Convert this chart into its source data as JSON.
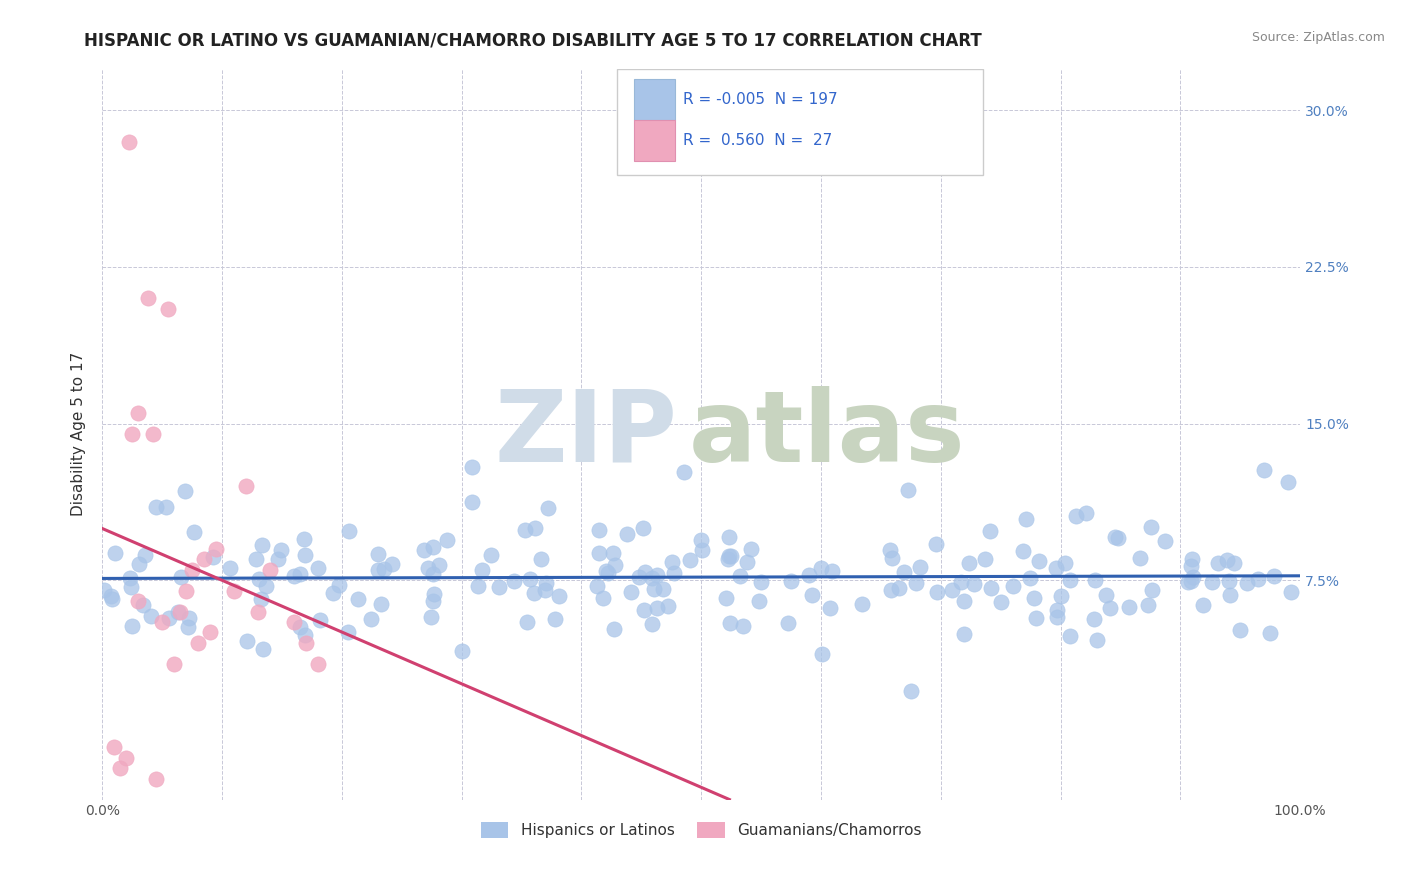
{
  "title": "HISPANIC OR LATINO VS GUAMANIAN/CHAMORRO DISABILITY AGE 5 TO 17 CORRELATION CHART",
  "source": "Source: ZipAtlas.com",
  "ylabel": "Disability Age 5 to 17",
  "x_min": 0.0,
  "x_max": 1.0,
  "y_min": -0.03,
  "y_max": 0.32,
  "yticks": [
    0.075,
    0.15,
    0.225,
    0.3
  ],
  "ytick_labels": [
    "7.5%",
    "15.0%",
    "22.5%",
    "30.0%"
  ],
  "xticks": [
    0.0,
    0.1,
    0.2,
    0.3,
    0.4,
    0.5,
    0.6,
    0.7,
    0.8,
    0.9,
    1.0
  ],
  "xtick_labels": [
    "0.0%",
    "",
    "",
    "",
    "",
    "",
    "",
    "",
    "",
    "",
    "100.0%"
  ],
  "blue_color": "#a8c4e8",
  "pink_color": "#f0a8c0",
  "blue_line_color": "#3060b0",
  "pink_line_color": "#d04070",
  "pink_dash_color": "#c8c8c8",
  "legend_r_blue": "-0.005",
  "legend_n_blue": "197",
  "legend_r_pink": "0.560",
  "legend_n_pink": "27",
  "legend_label_blue": "Hispanics or Latinos",
  "legend_label_pink": "Guamanians/Chamorros",
  "watermark_zip_color": "#d0dce8",
  "watermark_atlas_color": "#c8d4c0",
  "background_color": "#ffffff",
  "grid_color": "#c8c8d8",
  "blue_R": -0.005,
  "pink_R": 0.56,
  "blue_N": 197,
  "pink_N": 27,
  "title_fontsize": 12,
  "axis_label_fontsize": 11,
  "tick_fontsize": 10,
  "legend_fontsize": 11,
  "right_tick_color": "#5080c0"
}
